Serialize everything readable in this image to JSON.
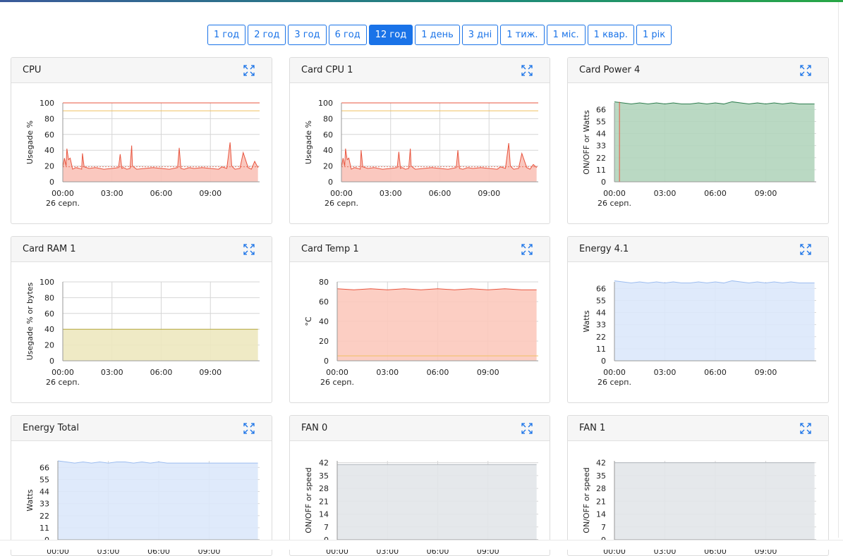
{
  "time_ranges": [
    {
      "label": "1 год",
      "active": false
    },
    {
      "label": "2 год",
      "active": false
    },
    {
      "label": "3 год",
      "active": false
    },
    {
      "label": "6 год",
      "active": false
    },
    {
      "label": "12 год",
      "active": true
    },
    {
      "label": "1 день",
      "active": false
    },
    {
      "label": "3 дні",
      "active": false
    },
    {
      "label": "1 тиж.",
      "active": false
    },
    {
      "label": "1 міс.",
      "active": false
    },
    {
      "label": "1 квар.",
      "active": false
    },
    {
      "label": "1 рік",
      "active": false
    }
  ],
  "x_ticks": [
    "00:00",
    "03:00",
    "06:00",
    "09:00"
  ],
  "x_date": "26 серп.",
  "cards": [
    {
      "title": "CPU",
      "expand_icon": "expand-icon",
      "chart_data": {
        "type": "area",
        "ylabel": "Usegade %",
        "yticks": [
          "0",
          "20",
          "40",
          "60",
          "80",
          "100"
        ],
        "ylim": [
          0,
          100
        ],
        "fill": "#f9c2b8",
        "stroke": "#e8553f",
        "thresholds": [
          {
            "value": 100,
            "color": "#e8553f"
          },
          {
            "value": 90,
            "color": "#f0c060"
          }
        ],
        "avg": {
          "value": 19,
          "color": "#e8553f"
        },
        "x_hours": [
          0,
          0.1,
          0.2,
          0.25,
          0.35,
          0.45,
          0.6,
          0.8,
          1.0,
          1.15,
          1.2,
          1.3,
          1.6,
          2.0,
          2.5,
          3.0,
          3.4,
          3.5,
          3.6,
          3.7,
          3.9,
          4.1,
          4.2,
          4.25,
          4.5,
          5.0,
          5.5,
          6.0,
          6.5,
          7.0,
          7.1,
          7.2,
          7.4,
          7.7,
          8.0,
          8.5,
          9.0,
          9.5,
          9.7,
          10.0,
          10.2,
          10.3,
          10.5,
          10.8,
          11.0,
          11.3,
          11.5,
          11.7,
          11.9
        ],
        "values": [
          18,
          30,
          20,
          42,
          28,
          30,
          16,
          18,
          17,
          16,
          36,
          19,
          17,
          18,
          16,
          17,
          18,
          35,
          17,
          18,
          16,
          17,
          46,
          20,
          16,
          17,
          18,
          17,
          16,
          18,
          43,
          17,
          16,
          18,
          17,
          18,
          17,
          16,
          19,
          17,
          50,
          20,
          16,
          17,
          37,
          18,
          16,
          26,
          18
        ]
      }
    },
    {
      "title": "Card CPU 1",
      "expand_icon": "expand-icon",
      "chart_data": {
        "type": "area",
        "ylabel": "Usegade %",
        "yticks": [
          "0",
          "20",
          "40",
          "60",
          "80",
          "100"
        ],
        "ylim": [
          0,
          100
        ],
        "fill": "#f9c2b8",
        "stroke": "#e8553f",
        "thresholds": [
          {
            "value": 100,
            "color": "#e8553f"
          },
          {
            "value": 90,
            "color": "#f0c060"
          }
        ],
        "avg": {
          "value": 19,
          "color": "#e8553f"
        },
        "x_hours": [
          0,
          0.1,
          0.2,
          0.25,
          0.35,
          0.45,
          0.6,
          0.8,
          1.0,
          1.15,
          1.2,
          1.3,
          1.6,
          2.0,
          2.5,
          3.0,
          3.4,
          3.5,
          3.6,
          3.7,
          3.9,
          4.1,
          4.2,
          4.25,
          4.5,
          5.0,
          5.5,
          6.0,
          6.5,
          7.0,
          7.1,
          7.2,
          7.4,
          7.7,
          8.0,
          8.5,
          9.0,
          9.5,
          9.7,
          10.0,
          10.2,
          10.3,
          10.5,
          10.8,
          11.0,
          11.3,
          11.5,
          11.7,
          11.9
        ],
        "values": [
          18,
          30,
          20,
          42,
          28,
          30,
          16,
          18,
          17,
          16,
          40,
          19,
          17,
          18,
          16,
          17,
          18,
          38,
          17,
          18,
          16,
          17,
          42,
          20,
          16,
          17,
          18,
          17,
          16,
          18,
          40,
          17,
          16,
          18,
          17,
          18,
          17,
          16,
          19,
          17,
          49,
          20,
          16,
          17,
          36,
          18,
          16,
          22,
          18
        ]
      }
    },
    {
      "title": "Card Power 4",
      "expand_icon": "expand-icon",
      "chart_data": {
        "type": "area",
        "ylabel": "ON/OFF or Watts",
        "yticks": [
          "0",
          "11",
          "22",
          "33",
          "44",
          "55",
          "66"
        ],
        "ylim": [
          0,
          72
        ],
        "fill": "#b3d5bd",
        "stroke": "#2e7d4f",
        "thresholds": [],
        "avg": null,
        "marker": {
          "x_hour": 0.3,
          "color": "#e8553f"
        },
        "x_hours": [
          0,
          0.5,
          1,
          1.5,
          2,
          2.5,
          3,
          3.5,
          4,
          4.5,
          5,
          5.5,
          6,
          6.5,
          7,
          7.5,
          8,
          8.5,
          9,
          9.5,
          10,
          10.5,
          11,
          11.5,
          11.9
        ],
        "values": [
          73,
          72,
          71,
          72,
          71,
          72,
          71,
          72,
          71,
          71,
          72,
          71,
          72,
          71,
          73,
          72,
          71,
          72,
          71,
          72,
          71,
          72,
          71,
          71,
          71
        ]
      }
    },
    {
      "title": "Card RAM 1",
      "expand_icon": "expand-icon",
      "chart_data": {
        "type": "area",
        "ylabel": "Usegade % or bytes",
        "yticks": [
          "0",
          "20",
          "40",
          "60",
          "80",
          "100"
        ],
        "ylim": [
          0,
          100
        ],
        "fill": "#ede8bf",
        "stroke": "#b5a93e",
        "thresholds": [],
        "avg": null,
        "x_hours": [
          0,
          11.9
        ],
        "values": [
          40,
          40
        ]
      }
    },
    {
      "title": "Card Temp 1",
      "expand_icon": "expand-icon",
      "chart_data": {
        "type": "area",
        "ylabel": "°C",
        "yticks": [
          "0",
          "20",
          "40",
          "60",
          "80"
        ],
        "ylim": [
          0,
          80
        ],
        "fill": "#fcc9bd",
        "stroke": "#e8553f",
        "thresholds": [
          {
            "value": 5,
            "color": "#f0c060"
          }
        ],
        "avg": null,
        "x_hours": [
          0,
          1,
          2,
          3,
          4,
          5,
          6,
          7,
          8,
          9,
          10,
          11,
          11.9
        ],
        "values": [
          73,
          72,
          73,
          72,
          73,
          72,
          73,
          72,
          73,
          72,
          73,
          72,
          72
        ]
      }
    },
    {
      "title": "Energy 4.1",
      "expand_icon": "expand-icon",
      "chart_data": {
        "type": "area",
        "ylabel": "Watts",
        "yticks": [
          "0",
          "11",
          "22",
          "33",
          "44",
          "55",
          "66"
        ],
        "ylim": [
          0,
          72
        ],
        "fill": "#dce8fb",
        "stroke": "#9dbdf0",
        "thresholds": [],
        "avg": null,
        "x_hours": [
          0,
          0.5,
          1,
          1.5,
          2,
          2.5,
          3,
          3.5,
          4,
          4.5,
          5,
          5.5,
          6,
          6.5,
          7,
          7.5,
          8,
          8.5,
          9,
          9.5,
          10,
          10.5,
          11,
          11.5,
          11.9
        ],
        "values": [
          73,
          72,
          71,
          72,
          71,
          72,
          71,
          72,
          71,
          71,
          72,
          71,
          72,
          71,
          73,
          72,
          71,
          72,
          71,
          72,
          71,
          72,
          71,
          71,
          71
        ]
      }
    },
    {
      "title": "Energy Total",
      "expand_icon": "expand-icon",
      "chart_data": {
        "type": "area",
        "ylabel": "Watts",
        "yticks": [
          "0",
          "11",
          "22",
          "33",
          "44",
          "55",
          "66"
        ],
        "ylim": [
          0,
          72
        ],
        "fill": "#dce8fb",
        "stroke": "#9dbdf0",
        "thresholds": [],
        "avg": null,
        "x_hours": [
          0,
          0.5,
          1,
          1.5,
          2,
          2.5,
          3,
          3.5,
          4,
          4.5,
          5,
          5.5,
          6,
          6.5,
          7,
          7.5,
          8,
          8.5,
          9,
          9.5,
          10,
          10.5,
          11,
          11.5,
          11.9
        ],
        "values": [
          72,
          71,
          70,
          71,
          70,
          71,
          70,
          71,
          71,
          70,
          71,
          70,
          71,
          70,
          70,
          70,
          70,
          70,
          70,
          70,
          70,
          70,
          70,
          70,
          70
        ]
      }
    },
    {
      "title": "FAN 0",
      "expand_icon": "expand-icon",
      "chart_data": {
        "type": "area",
        "ylabel": "ON/OFF or speed",
        "yticks": [
          "0",
          "7",
          "14",
          "21",
          "28",
          "35",
          "42"
        ],
        "ylim": [
          0,
          43
        ],
        "fill": "#e2e5e9",
        "stroke": "#b0b6bd",
        "thresholds": [],
        "avg": null,
        "x_hours": [
          0,
          11.9
        ],
        "values": [
          41,
          41
        ]
      }
    },
    {
      "title": "FAN 1",
      "expand_icon": "expand-icon",
      "chart_data": {
        "type": "area",
        "ylabel": "ON/OFF or speed",
        "yticks": [
          "0",
          "7",
          "14",
          "21",
          "28",
          "35",
          "42"
        ],
        "ylim": [
          0,
          43
        ],
        "fill": "#e2e5e9",
        "stroke": "#b0b6bd",
        "thresholds": [],
        "avg": null,
        "x_hours": [
          0,
          11.9
        ],
        "values": [
          42,
          42
        ]
      }
    }
  ]
}
